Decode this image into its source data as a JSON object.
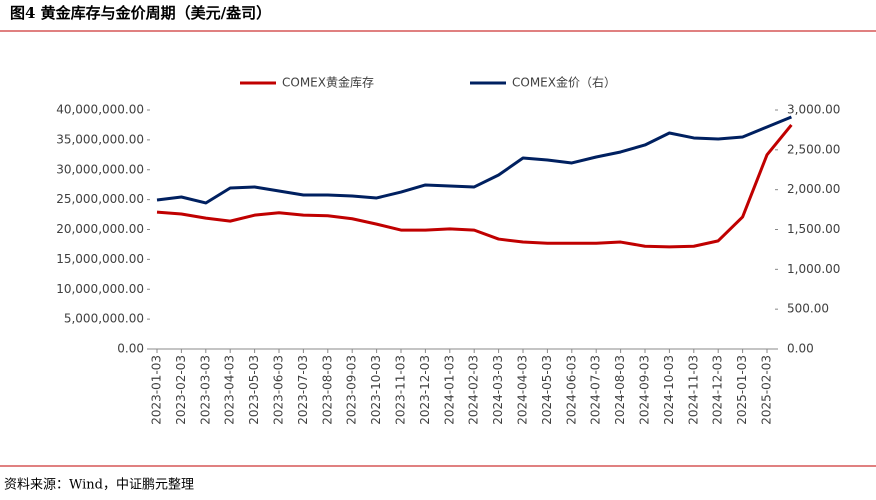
{
  "chart_data": {
    "type": "line",
    "title": "图4 黄金库存与金价周期（美元/盎司）",
    "source": "资料来源：Wind，中证鹏元整理",
    "categories": [
      "2023-01-03",
      "2023-02-03",
      "2023-03-03",
      "2023-04-03",
      "2023-05-03",
      "2023-06-03",
      "2023-07-03",
      "2023-08-03",
      "2023-09-03",
      "2023-10-03",
      "2023-11-03",
      "2023-12-03",
      "2024-01-03",
      "2024-02-03",
      "2024-03-03",
      "2024-04-03",
      "2024-05-03",
      "2024-06-03",
      "2024-07-03",
      "2024-08-03",
      "2024-09-03",
      "2024-10-03",
      "2024-11-03",
      "2024-12-03",
      "2025-01-03",
      "2025-02-03",
      null
    ],
    "series": [
      {
        "name": "COMEX黄金库存",
        "color": "#c00000",
        "values": [
          22900000,
          22600000,
          21900000,
          21400000,
          22400000,
          22800000,
          22400000,
          22300000,
          21800000,
          20900000,
          19900000,
          19900000,
          20100000,
          19900000,
          18400000,
          17900000,
          17700000,
          17700000,
          17700000,
          17900000,
          17200000,
          17100000,
          17200000,
          18100000,
          22100000,
          32500000,
          37500000
        ]
      },
      {
        "name": "COMEX金价（右）",
        "color": "#002060",
        "axis": "y2",
        "values": [
          1870,
          1908,
          1833,
          2021,
          2034,
          1983,
          1933,
          1933,
          1920,
          1896,
          1970,
          2059,
          2046,
          2034,
          2184,
          2397,
          2372,
          2335,
          2410,
          2473,
          2561,
          2711,
          2649,
          2636,
          2661,
          2787,
          2912
        ]
      }
    ],
    "ylim": [
      0,
      40000000
    ],
    "yticks": [
      {
        "value": 0,
        "label": "0.00"
      },
      {
        "value": 5000000,
        "label": "5,000,000.00"
      },
      {
        "value": 10000000,
        "label": "10,000,000.00"
      },
      {
        "value": 15000000,
        "label": "15,000,000.00"
      },
      {
        "value": 20000000,
        "label": "20,000,000.00"
      },
      {
        "value": 25000000,
        "label": "25,000,000.00"
      },
      {
        "value": 30000000,
        "label": "30,000,000.00"
      },
      {
        "value": 35000000,
        "label": "35,000,000.00"
      },
      {
        "value": 40000000,
        "label": "40,000,000.00"
      }
    ],
    "y2lim": [
      0,
      3000
    ],
    "y2ticks": [
      {
        "value": 0,
        "label": "0.00"
      },
      {
        "value": 500,
        "label": "500.00"
      },
      {
        "value": 1000,
        "label": "1,000.00"
      },
      {
        "value": 1500,
        "label": "1,500.00"
      },
      {
        "value": 2000,
        "label": "2,000.00"
      },
      {
        "value": 2500,
        "label": "2,500.00"
      },
      {
        "value": 3000,
        "label": "3,000.00"
      }
    ],
    "legend": "top"
  }
}
